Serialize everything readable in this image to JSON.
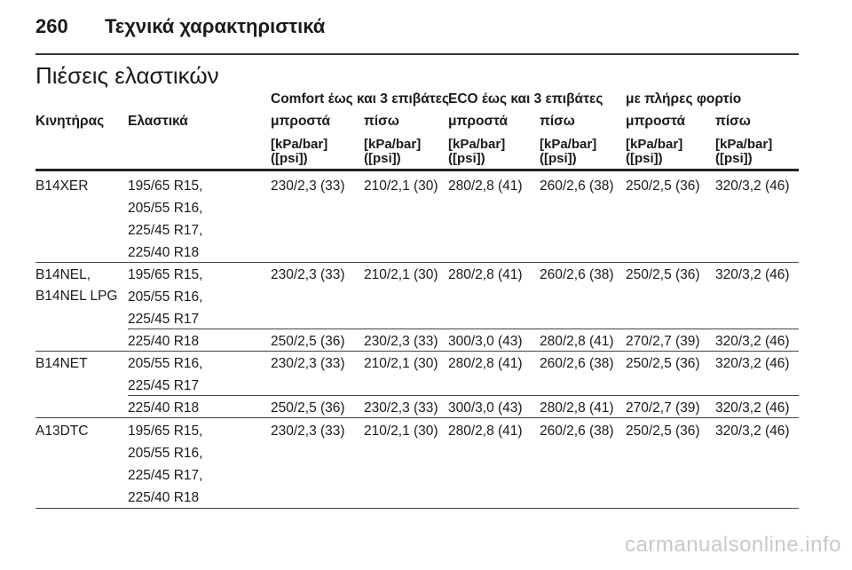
{
  "page": {
    "number": "260",
    "title": "Τεχνικά χαρακτηριστικά"
  },
  "section": {
    "title": "Πιέσεις ελαστικών"
  },
  "table": {
    "groups": [
      "Comfort έως και 3 επιβάτες",
      "ECO έως και 3 επιβάτες",
      "με πλήρες φορτίο"
    ],
    "columns": [
      "Κινητήρας",
      "Ελαστικά",
      "μπροστά",
      "πίσω",
      "μπροστά",
      "πίσω",
      "μπροστά",
      "πίσω"
    ],
    "unit_line1": "[kPa/bar]",
    "unit_line2": "([psi])",
    "rows": [
      {
        "engine": [
          "B14XER"
        ],
        "tyres": [
          "195/65 R15,",
          "205/55 R16,",
          "225/45 R17,",
          "225/40 R18"
        ],
        "values": [
          "230/2,3 (33)",
          "210/2,1 (30)",
          "280/2,8 (41)",
          "260/2,6 (38)",
          "250/2,5 (36)",
          "320/3,2 (46)"
        ]
      },
      {
        "engine": [
          "B14NEL,",
          "B14NEL LPG"
        ],
        "tyres": [
          "195/65 R15,",
          "205/55 R16,",
          "225/45 R17"
        ],
        "values": [
          "230/2,3 (33)",
          "210/2,1 (30)",
          "280/2,8 (41)",
          "260/2,6 (38)",
          "250/2,5 (36)",
          "320/3,2 (46)"
        ]
      },
      {
        "engine": [],
        "tyres": [
          "225/40 R18"
        ],
        "values": [
          "250/2,5 (36)",
          "230/2,3 (33)",
          "300/3,0 (43)",
          "280/2,8 (41)",
          "270/2,7 (39)",
          "320/3,2 (46)"
        ]
      },
      {
        "engine": [
          "B14NET"
        ],
        "tyres": [
          "205/55 R16,",
          "225/45 R17"
        ],
        "values": [
          "230/2,3 (33)",
          "210/2,1 (30)",
          "280/2,8 (41)",
          "260/2,6 (38)",
          "250/2,5 (36)",
          "320/3,2 (46)"
        ]
      },
      {
        "engine": [],
        "tyres": [
          "225/40 R18"
        ],
        "values": [
          "250/2,5 (36)",
          "230/2,3 (33)",
          "300/3,0 (43)",
          "280/2,8 (41)",
          "270/2,7 (39)",
          "320/3,2 (46)"
        ]
      },
      {
        "engine": [
          "A13DTC"
        ],
        "tyres": [
          "195/65 R15,",
          "205/55 R16,",
          "225/45 R17,",
          "225/40 R18"
        ],
        "values": [
          "230/2,3 (33)",
          "210/2,1 (30)",
          "280/2,8 (41)",
          "260/2,6 (38)",
          "250/2,5 (36)",
          "320/3,2 (46)"
        ]
      }
    ]
  },
  "watermark": "carmanualsonline.info"
}
